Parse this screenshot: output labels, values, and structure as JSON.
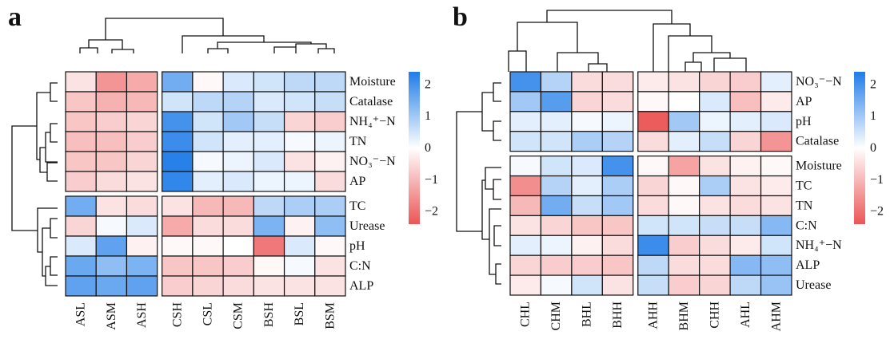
{
  "chart_data": [
    {
      "type": "heatmap",
      "panel_label": "a",
      "columns": [
        "ASL",
        "ASM",
        "ASH",
        "CSH",
        "CSL",
        "CSM",
        "BSH",
        "BSL",
        "BSM"
      ],
      "rows": [
        "Moisture",
        "Catalase",
        "NH₄⁺−N",
        "TN",
        "NO₃⁻−N",
        "AP",
        "TC",
        "Urease",
        "pH",
        "C:N",
        "ALP"
      ],
      "values": [
        [
          -0.4,
          -1.5,
          -1.2,
          1.5,
          -0.1,
          0.4,
          0.5,
          0.7,
          0.7
        ],
        [
          -0.8,
          -1.1,
          -1.0,
          0.5,
          0.7,
          0.8,
          0.4,
          0.5,
          0.6
        ],
        [
          -0.8,
          -0.7,
          -0.6,
          2.0,
          0.5,
          1.0,
          0.6,
          -0.6,
          -0.7
        ],
        [
          -0.9,
          -0.9,
          -0.7,
          2.1,
          0.5,
          0.3,
          0.3,
          0.1,
          0.2
        ],
        [
          -0.8,
          -0.8,
          -0.6,
          2.3,
          0.1,
          0.2,
          0.4,
          -0.4,
          -0.2
        ],
        [
          -0.7,
          -0.5,
          -0.4,
          2.2,
          0.3,
          0.4,
          0.2,
          0.2,
          -0.5
        ],
        [
          1.5,
          -0.4,
          -0.5,
          -0.4,
          -1.0,
          -1.0,
          0.7,
          0.9,
          0.9
        ],
        [
          -0.6,
          0.1,
          0.4,
          -1.2,
          -0.5,
          -0.5,
          1.4,
          -0.2,
          1.2
        ],
        [
          0.4,
          1.7,
          -0.2,
          -0.1,
          -0.1,
          0.0,
          -1.9,
          0.4,
          -0.1
        ],
        [
          1.6,
          1.2,
          1.4,
          -0.8,
          -0.8,
          -0.7,
          -0.1,
          0.1,
          -0.4
        ],
        [
          1.7,
          1.6,
          1.7,
          -0.7,
          -0.6,
          -0.5,
          -0.4,
          -0.4,
          -0.4
        ]
      ],
      "row_groups": [
        6,
        5
      ],
      "column_groups": [
        3,
        6
      ],
      "colorbar": {
        "ticks": [
          2,
          1,
          0,
          -1,
          -2
        ],
        "tick_labels": [
          "2",
          "1",
          "0",
          "−1",
          "−2"
        ],
        "range": [
          -2.4,
          2.4
        ]
      }
    },
    {
      "type": "heatmap",
      "panel_label": "b",
      "columns": [
        "CHL",
        "CHM",
        "BHL",
        "BHH",
        "AHH",
        "BHM",
        "CHH",
        "AHL",
        "AHM"
      ],
      "rows": [
        "NO₃⁻−N",
        "AP",
        "pH",
        "Catalase",
        "Moisture",
        "TC",
        "TN",
        "C:N",
        "NH₄⁺−N",
        "ALP",
        "Urease"
      ],
      "values": [
        [
          2.0,
          0.8,
          -0.5,
          -0.5,
          -0.3,
          -0.4,
          -0.6,
          -0.7,
          0.3
        ],
        [
          1.0,
          1.8,
          -0.6,
          -0.5,
          -0.1,
          0.0,
          0.4,
          -0.9,
          -0.3
        ],
        [
          0.3,
          0.3,
          0.1,
          0.2,
          -2.3,
          1.0,
          0.2,
          0.3,
          0.4
        ],
        [
          0.5,
          0.5,
          0.9,
          0.8,
          -0.5,
          0.3,
          0.6,
          -0.6,
          -1.5
        ],
        [
          0.1,
          0.5,
          0.4,
          2.0,
          -0.1,
          -1.3,
          -0.4,
          -0.2,
          -0.1
        ],
        [
          -1.6,
          0.8,
          0.3,
          0.9,
          -0.6,
          -0.1,
          0.9,
          -0.4,
          -0.3
        ],
        [
          -1.0,
          1.5,
          0.6,
          1.0,
          -0.5,
          -0.1,
          -0.4,
          -0.5,
          -0.4
        ],
        [
          -0.4,
          -0.6,
          -0.8,
          -0.8,
          0.5,
          0.5,
          0.6,
          0.6,
          1.3
        ],
        [
          0.3,
          0.2,
          -0.2,
          -0.5,
          2.1,
          -0.7,
          -0.5,
          -0.3,
          0.5
        ],
        [
          -0.6,
          -0.7,
          -0.7,
          -0.8,
          0.7,
          -0.5,
          -0.5,
          1.3,
          1.2
        ],
        [
          -0.3,
          0.1,
          0.5,
          -0.4,
          0.6,
          -0.7,
          -0.6,
          0.7,
          1.1
        ]
      ],
      "row_groups": [
        4,
        7
      ],
      "column_groups": [
        4,
        5
      ],
      "colorbar": {
        "ticks": [
          2,
          1,
          0,
          -1,
          -2
        ],
        "tick_labels": [
          "2",
          "1",
          "0",
          "−1",
          "−2"
        ],
        "range": [
          -2.4,
          2.4
        ]
      }
    }
  ],
  "colors": {
    "positive": "#1f7ce8",
    "neutral": "#ffffff",
    "negative": "#ec5555",
    "border": "#111111"
  }
}
